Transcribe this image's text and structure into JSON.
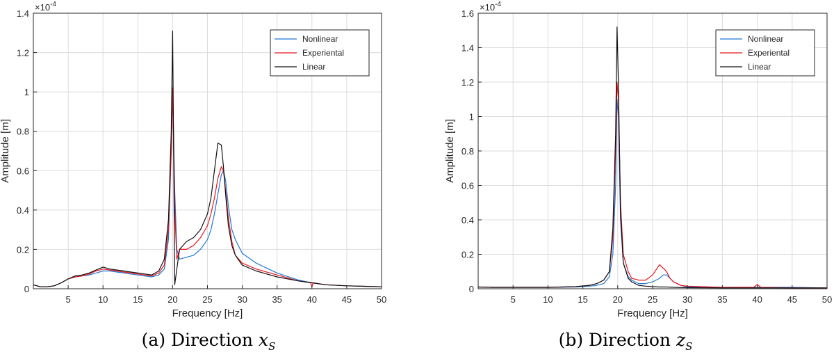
{
  "chart_data": [
    {
      "type": "line",
      "caption": "(a) Direction",
      "caption_var": "x",
      "caption_sub": "S",
      "xlabel": "Frequency [Hz]",
      "ylabel": "Amplitude [m]",
      "exponent_label": "×10",
      "exponent_power": "-4",
      "xlim": [
        0,
        50
      ],
      "ylim": [
        0,
        1.4
      ],
      "xticks": [
        5,
        10,
        15,
        20,
        25,
        30,
        35,
        40,
        45,
        50
      ],
      "yticks": [
        0,
        0.2,
        0.4,
        0.6,
        0.8,
        1,
        1.2,
        1.4
      ],
      "grid": true,
      "legend_position": "top-right",
      "series": [
        {
          "name": "Nonlinear",
          "color": "#1f77d4",
          "x": [
            0,
            1,
            2,
            3,
            4,
            5,
            6,
            7,
            8,
            9,
            10,
            11,
            12,
            13,
            14,
            15,
            16,
            17,
            18,
            18.8,
            19.4,
            19.8,
            20.0,
            20.3,
            20.6,
            21,
            22,
            23,
            24,
            25,
            25.5,
            26,
            26.5,
            27,
            27.3,
            27.6,
            28,
            28.5,
            29,
            30,
            32,
            35,
            38,
            40,
            42,
            45,
            48,
            50
          ],
          "y": [
            0.02,
            0.01,
            0.01,
            0.015,
            0.03,
            0.05,
            0.06,
            0.065,
            0.07,
            0.08,
            0.09,
            0.09,
            0.085,
            0.08,
            0.075,
            0.07,
            0.065,
            0.06,
            0.07,
            0.1,
            0.25,
            0.7,
            1.02,
            0.5,
            0.2,
            0.15,
            0.16,
            0.17,
            0.2,
            0.25,
            0.3,
            0.38,
            0.48,
            0.58,
            0.6,
            0.55,
            0.42,
            0.3,
            0.25,
            0.18,
            0.13,
            0.08,
            0.045,
            0.03,
            0.02,
            0.015,
            0.012,
            0.01
          ]
        },
        {
          "name": "Experiental",
          "color": "#e8141b",
          "x": [
            0,
            1,
            2,
            3,
            4,
            5,
            6,
            7,
            8,
            9,
            10,
            11,
            12,
            13,
            14,
            15,
            16,
            17,
            18,
            18.8,
            19.4,
            19.8,
            20.0,
            20.3,
            20.6,
            21,
            22,
            23,
            24,
            25,
            25.5,
            26,
            26.5,
            27,
            27.3,
            27.6,
            28,
            28.5,
            29,
            30,
            32,
            35,
            38,
            39.8,
            40,
            40.2,
            42,
            45,
            48,
            50
          ],
          "y": [
            0.02,
            0.01,
            0.01,
            0.015,
            0.03,
            0.05,
            0.06,
            0.065,
            0.075,
            0.09,
            0.1,
            0.095,
            0.09,
            0.085,
            0.08,
            0.075,
            0.07,
            0.065,
            0.08,
            0.12,
            0.3,
            0.7,
            1.02,
            0.4,
            0.15,
            0.2,
            0.2,
            0.22,
            0.26,
            0.32,
            0.38,
            0.46,
            0.56,
            0.62,
            0.6,
            0.5,
            0.36,
            0.24,
            0.17,
            0.13,
            0.1,
            0.07,
            0.04,
            0.03,
            0.01,
            0.03,
            0.02,
            0.015,
            0.012,
            0.01
          ]
        },
        {
          "name": "Linear",
          "color": "#111111",
          "x": [
            0,
            1,
            2,
            3,
            4,
            5,
            6,
            7,
            8,
            9,
            10,
            11,
            12,
            13,
            14,
            15,
            16,
            17,
            18,
            18.8,
            19.4,
            19.8,
            20.0,
            20.3,
            20.6,
            21,
            22,
            23,
            24,
            25,
            25.5,
            26,
            26.5,
            27,
            27.3,
            27.6,
            28,
            28.5,
            29,
            30,
            32,
            35,
            38,
            40,
            42,
            45,
            48,
            50
          ],
          "y": [
            0.02,
            0.01,
            0.01,
            0.015,
            0.03,
            0.05,
            0.065,
            0.07,
            0.08,
            0.095,
            0.11,
            0.1,
            0.095,
            0.09,
            0.085,
            0.08,
            0.075,
            0.07,
            0.09,
            0.15,
            0.35,
            0.8,
            1.31,
            0.02,
            0.1,
            0.2,
            0.24,
            0.26,
            0.3,
            0.38,
            0.46,
            0.6,
            0.74,
            0.73,
            0.62,
            0.48,
            0.32,
            0.22,
            0.17,
            0.12,
            0.09,
            0.06,
            0.04,
            0.03,
            0.02,
            0.015,
            0.012,
            0.01
          ]
        }
      ]
    },
    {
      "type": "line",
      "caption": "(b) Direction",
      "caption_var": "z",
      "caption_sub": "S",
      "xlabel": "Frequency [Hz]",
      "ylabel": "Amplitude [m]",
      "exponent_label": "×10",
      "exponent_power": "-4",
      "xlim": [
        0,
        50
      ],
      "ylim": [
        0,
        1.6
      ],
      "xticks": [
        5,
        10,
        15,
        20,
        25,
        30,
        35,
        40,
        45,
        50
      ],
      "yticks": [
        0,
        0.2,
        0.4,
        0.6,
        0.8,
        1,
        1.2,
        1.4,
        1.6
      ],
      "grid": true,
      "legend_position": "top-right",
      "series": [
        {
          "name": "Nonlinear",
          "color": "#1f77d4",
          "x": [
            0,
            2,
            5,
            10,
            14,
            16,
            17,
            18,
            18.8,
            19.3,
            19.7,
            19.9,
            20.1,
            20.4,
            20.8,
            21.5,
            22,
            23,
            24,
            25,
            26,
            26.5,
            27,
            27.5,
            28,
            29,
            30,
            35,
            40,
            45,
            50
          ],
          "y": [
            0.01,
            0.008,
            0.008,
            0.008,
            0.01,
            0.015,
            0.02,
            0.03,
            0.07,
            0.2,
            0.6,
            1.1,
            1.0,
            0.4,
            0.15,
            0.07,
            0.05,
            0.03,
            0.03,
            0.04,
            0.06,
            0.08,
            0.08,
            0.06,
            0.04,
            0.02,
            0.01,
            0.008,
            0.008,
            0.008,
            0.005
          ]
        },
        {
          "name": "Experiental",
          "color": "#e8141b",
          "x": [
            0,
            2,
            5,
            10,
            14,
            16,
            17,
            18,
            18.8,
            19.3,
            19.7,
            19.9,
            20.1,
            20.4,
            20.8,
            21.5,
            22,
            23,
            24,
            25,
            25.5,
            26,
            26.5,
            27,
            27.5,
            28,
            29,
            30,
            35,
            39.5,
            40,
            40.5,
            45,
            50
          ],
          "y": [
            0.01,
            0.008,
            0.008,
            0.008,
            0.012,
            0.02,
            0.03,
            0.05,
            0.1,
            0.3,
            0.8,
            1.2,
            1.1,
            0.5,
            0.2,
            0.1,
            0.06,
            0.05,
            0.05,
            0.08,
            0.11,
            0.14,
            0.12,
            0.1,
            0.06,
            0.04,
            0.02,
            0.015,
            0.008,
            0.008,
            0.025,
            0.008,
            0.005,
            0.005
          ]
        },
        {
          "name": "Linear",
          "color": "#111111",
          "x": [
            0,
            2,
            5,
            10,
            14,
            16,
            17,
            18,
            18.8,
            19.3,
            19.7,
            19.9,
            20.1,
            20.4,
            20.8,
            21.5,
            22,
            23,
            24,
            25,
            26,
            27,
            28,
            30,
            35,
            40,
            45,
            50
          ],
          "y": [
            0.01,
            0.008,
            0.008,
            0.008,
            0.012,
            0.02,
            0.03,
            0.05,
            0.1,
            0.35,
            0.9,
            1.52,
            1.2,
            0.45,
            0.15,
            0.06,
            0.04,
            0.02,
            0.015,
            0.012,
            0.01,
            0.01,
            0.008,
            0.006,
            0.005,
            0.005,
            0.005,
            0.005
          ]
        }
      ]
    }
  ]
}
